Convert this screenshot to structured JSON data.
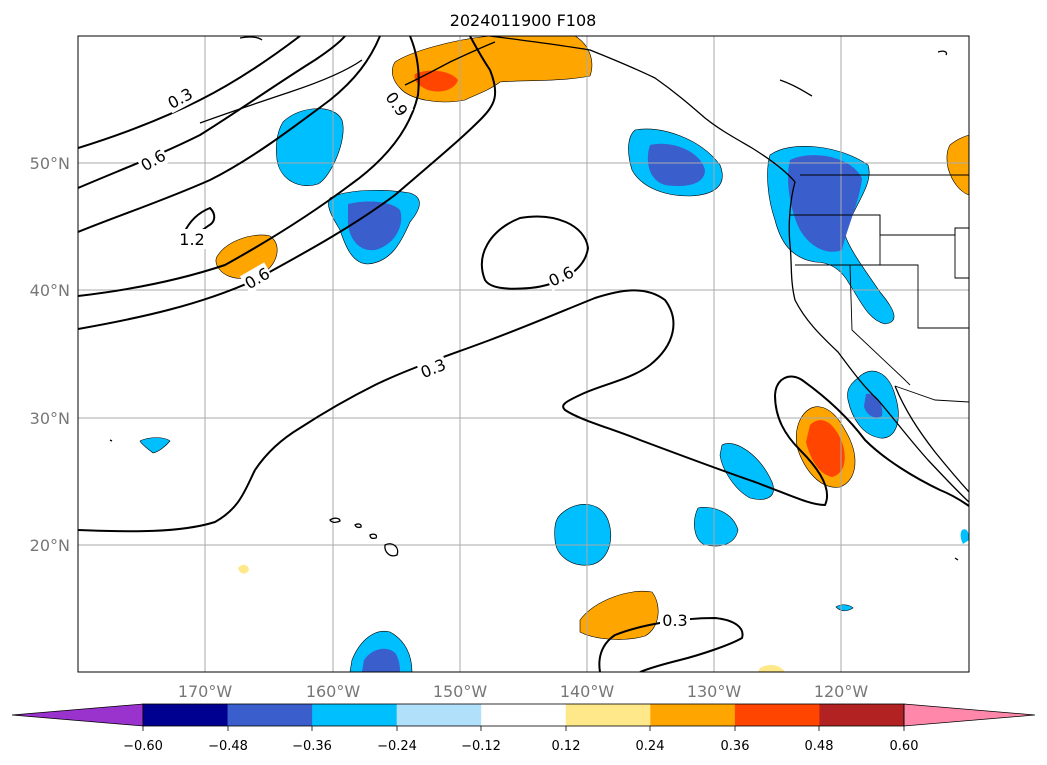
{
  "title": "2024011900 F108",
  "lon_labels": [
    "170°W",
    "160°W",
    "150°W",
    "140°W",
    "130°W",
    "120°W"
  ],
  "lat_labels": [
    "50°N",
    "40°N",
    "30°N",
    "20°N"
  ],
  "colorbar": {
    "ticks": [
      "−0.60",
      "−0.48",
      "−0.36",
      "−0.24",
      "−0.12",
      "0.12",
      "0.24",
      "0.36",
      "0.48",
      "0.60"
    ],
    "extend_low_color": "#9a32cd",
    "extend_high_color": "#ff88aa",
    "colors": [
      "#000090",
      "#3a5fcd",
      "#00bfff",
      "#b0e0fa",
      "#ffffff",
      "#ffe88a",
      "#ffa500",
      "#ff4500",
      "#b22222"
    ]
  },
  "contour_labels": [
    "0.3",
    "0.6",
    "0.9",
    "1.2",
    "0.6",
    "0.6",
    "0.3",
    "0.3"
  ],
  "chart_data": {
    "type": "heatmap",
    "projection": "PlateCarree",
    "lon_range": [
      -180,
      -110
    ],
    "lat_range": [
      10,
      60
    ],
    "grid": true,
    "contour_levels": [
      0.3,
      0.6,
      0.9,
      1.2
    ],
    "fill_levels": [
      -0.6,
      -0.48,
      -0.36,
      -0.24,
      -0.12,
      0.12,
      0.24,
      0.36,
      0.48,
      0.6
    ]
  }
}
